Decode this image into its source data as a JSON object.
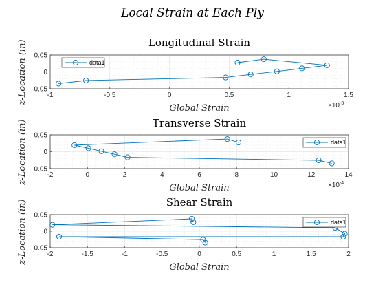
{
  "figure": {
    "title": "Local Strain at Each Ply"
  },
  "chart_data": [
    {
      "type": "line",
      "title": "Longitudinal Strain",
      "xlabel": "Global Strain",
      "ylabel": "z-Location (in)",
      "x_multiplier": "×10",
      "x_exponent": "-3",
      "xlim": [
        -1,
        1.5
      ],
      "ylim": [
        -0.05,
        0.05
      ],
      "xticks": [
        -1,
        -0.5,
        0,
        0.5,
        1,
        1.5
      ],
      "yticks": [
        -0.05,
        0,
        0.05
      ],
      "xtick_labels": [
        "-1",
        "-0.5",
        "0",
        "0.5",
        "1",
        "1.5"
      ],
      "ytick_labels": [
        "-0.05",
        "0",
        "0.05"
      ],
      "grid": true,
      "minor_grid": true,
      "legend": "top-left",
      "series": [
        {
          "name": "data1",
          "x": [
            0.57,
            0.79,
            1.32,
            1.11,
            0.9,
            0.68,
            0.47,
            -0.7,
            -0.93
          ],
          "y": [
            0.0275,
            0.0375,
            0.0195,
            0.0105,
            0.0015,
            -0.0075,
            -0.0165,
            -0.0255,
            -0.0345
          ]
        }
      ]
    },
    {
      "type": "line",
      "title": "Transverse Strain",
      "xlabel": "Global Strain",
      "ylabel": "z-Location (in)",
      "x_multiplier": "×10",
      "x_exponent": "-4",
      "xlim": [
        -2,
        14
      ],
      "ylim": [
        -0.05,
        0.05
      ],
      "xticks": [
        -2,
        0,
        2,
        4,
        6,
        8,
        10,
        12,
        14
      ],
      "yticks": [
        -0.05,
        0,
        0.05
      ],
      "xtick_labels": [
        "-2",
        "0",
        "2",
        "4",
        "6",
        "8",
        "10",
        "12",
        "14"
      ],
      "ytick_labels": [
        "-0.05",
        "0",
        "0.05"
      ],
      "grid": true,
      "minor_grid": true,
      "legend": "top-right",
      "series": [
        {
          "name": "data1",
          "x": [
            8.1,
            7.5,
            -0.7,
            0.05,
            0.75,
            1.45,
            2.15,
            12.4,
            13.1
          ],
          "y": [
            0.0275,
            0.0375,
            0.0195,
            0.0105,
            0.0015,
            -0.0075,
            -0.0165,
            -0.0255,
            -0.0345
          ]
        }
      ]
    },
    {
      "type": "line",
      "title": "Shear Strain",
      "xlabel": "Global Strain",
      "ylabel": "z-Location (in)",
      "x_multiplier": "",
      "x_exponent": "",
      "xlim": [
        -2,
        2
      ],
      "ylim": [
        -0.05,
        0.05
      ],
      "xticks": [
        -2,
        -1.5,
        -1,
        -0.5,
        0,
        0.5,
        1,
        1.5,
        2
      ],
      "yticks": [
        -0.05,
        0,
        0.05
      ],
      "xtick_labels": [
        "-2",
        "-1.5",
        "-1",
        "-0.5",
        "0",
        "0.5",
        "1",
        "1.5",
        "2"
      ],
      "ytick_labels": [
        "-0.05",
        "0",
        "0.05"
      ],
      "grid": true,
      "minor_grid": true,
      "legend": "top-right",
      "series": [
        {
          "name": "data1",
          "x": [
            -0.08,
            -0.1,
            -1.97,
            1.82,
            1.95,
            1.93,
            -1.88,
            0.05,
            0.08
          ],
          "y": [
            0.0275,
            0.0375,
            0.0195,
            0.0105,
            -0.0075,
            -0.0165,
            -0.0165,
            -0.0255,
            -0.0345
          ]
        }
      ]
    }
  ]
}
